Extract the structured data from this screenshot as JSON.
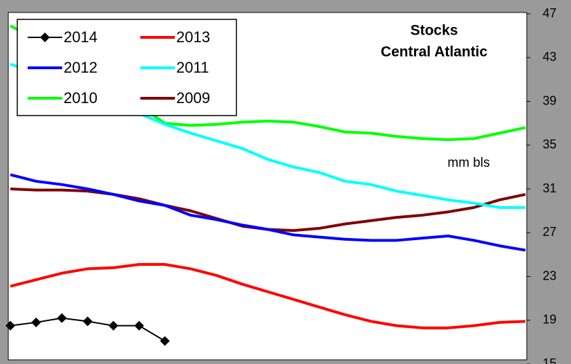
{
  "chart_data": {
    "type": "line",
    "title": "Stocks",
    "subtitle": "Central Atlantic",
    "annotations": [
      "mm bls"
    ],
    "ylim": [
      15,
      47
    ],
    "yticks": [
      15,
      19,
      23,
      27,
      31,
      35,
      39,
      43,
      47
    ],
    "y_axis_side": "right",
    "legend": "upper left",
    "series": [
      {
        "name": "2014",
        "color": "#000000",
        "marker": "diamond",
        "values": [
          18.5,
          18.8,
          19.2,
          18.9,
          18.5,
          18.5,
          17.1
        ]
      },
      {
        "name": "2013",
        "color": "#ff0000",
        "values": [
          22.1,
          22.7,
          23.3,
          23.7,
          23.8,
          24.1,
          24.1,
          23.7,
          23.1,
          22.3,
          21.6,
          20.9,
          20.2,
          19.5,
          18.9,
          18.5,
          18.3,
          18.3,
          18.5,
          18.8,
          18.9
        ]
      },
      {
        "name": "2012",
        "color": "#0000ff",
        "values": [
          32.3,
          31.7,
          31.4,
          31.0,
          30.5,
          29.9,
          29.5,
          28.6,
          28.2,
          27.7,
          27.3,
          26.8,
          26.6,
          26.4,
          26.3,
          26.3,
          26.5,
          26.7,
          26.3,
          25.8,
          25.4
        ]
      },
      {
        "name": "2011",
        "color": "#00ffff",
        "values": [
          42.4,
          41.6,
          40.9,
          40.2,
          39.4,
          37.9,
          36.9,
          36.1,
          35.4,
          34.7,
          33.7,
          33.0,
          32.5,
          31.7,
          31.4,
          30.8,
          30.4,
          30.0,
          29.7,
          29.3,
          29.3
        ]
      },
      {
        "name": "2010",
        "color": "#00ff00",
        "values": [
          45.9,
          44.7,
          43.4,
          42.0,
          40.5,
          38.6,
          37.0,
          36.8,
          36.9,
          37.1,
          37.2,
          37.1,
          36.7,
          36.2,
          36.1,
          35.8,
          35.6,
          35.5,
          35.6,
          36.1,
          36.6
        ]
      },
      {
        "name": "2009",
        "color": "#800000",
        "values": [
          31.0,
          30.9,
          30.9,
          30.8,
          30.5,
          30.1,
          29.5,
          29.0,
          28.3,
          27.6,
          27.3,
          27.2,
          27.4,
          27.8,
          28.1,
          28.4,
          28.6,
          28.9,
          29.3,
          30.0,
          30.5
        ]
      }
    ]
  }
}
